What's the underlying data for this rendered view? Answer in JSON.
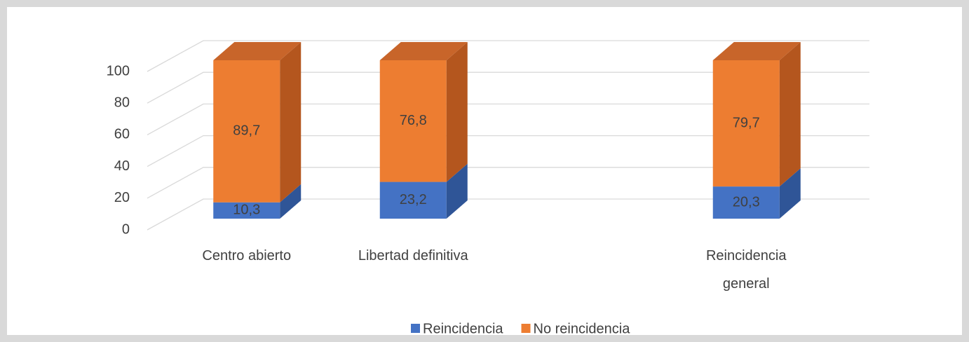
{
  "chart_data": {
    "type": "bar",
    "stacked": true,
    "categories": [
      "Centro abierto",
      "Libertad definitiva",
      null,
      "Reincidencia general"
    ],
    "series": [
      {
        "name": "Reincidencia",
        "color": "#4472c4",
        "side": "#2f5597",
        "top": "#3a62ad",
        "values": [
          10.3,
          23.2,
          null,
          20.3
        ],
        "value_labels": [
          "10,3",
          "23,2",
          null,
          "20,3"
        ]
      },
      {
        "name": "No reincidencia",
        "color": "#ed7d31",
        "side": "#b4561e",
        "top": "#c8652a",
        "values": [
          89.7,
          76.8,
          null,
          79.7
        ],
        "value_labels": [
          "89,7",
          "76,8",
          null,
          "79,7"
        ]
      }
    ],
    "ylim": [
      0,
      100
    ],
    "yticks": [
      0,
      20,
      40,
      60,
      80,
      100
    ],
    "grid": true,
    "legend": "bottom"
  }
}
